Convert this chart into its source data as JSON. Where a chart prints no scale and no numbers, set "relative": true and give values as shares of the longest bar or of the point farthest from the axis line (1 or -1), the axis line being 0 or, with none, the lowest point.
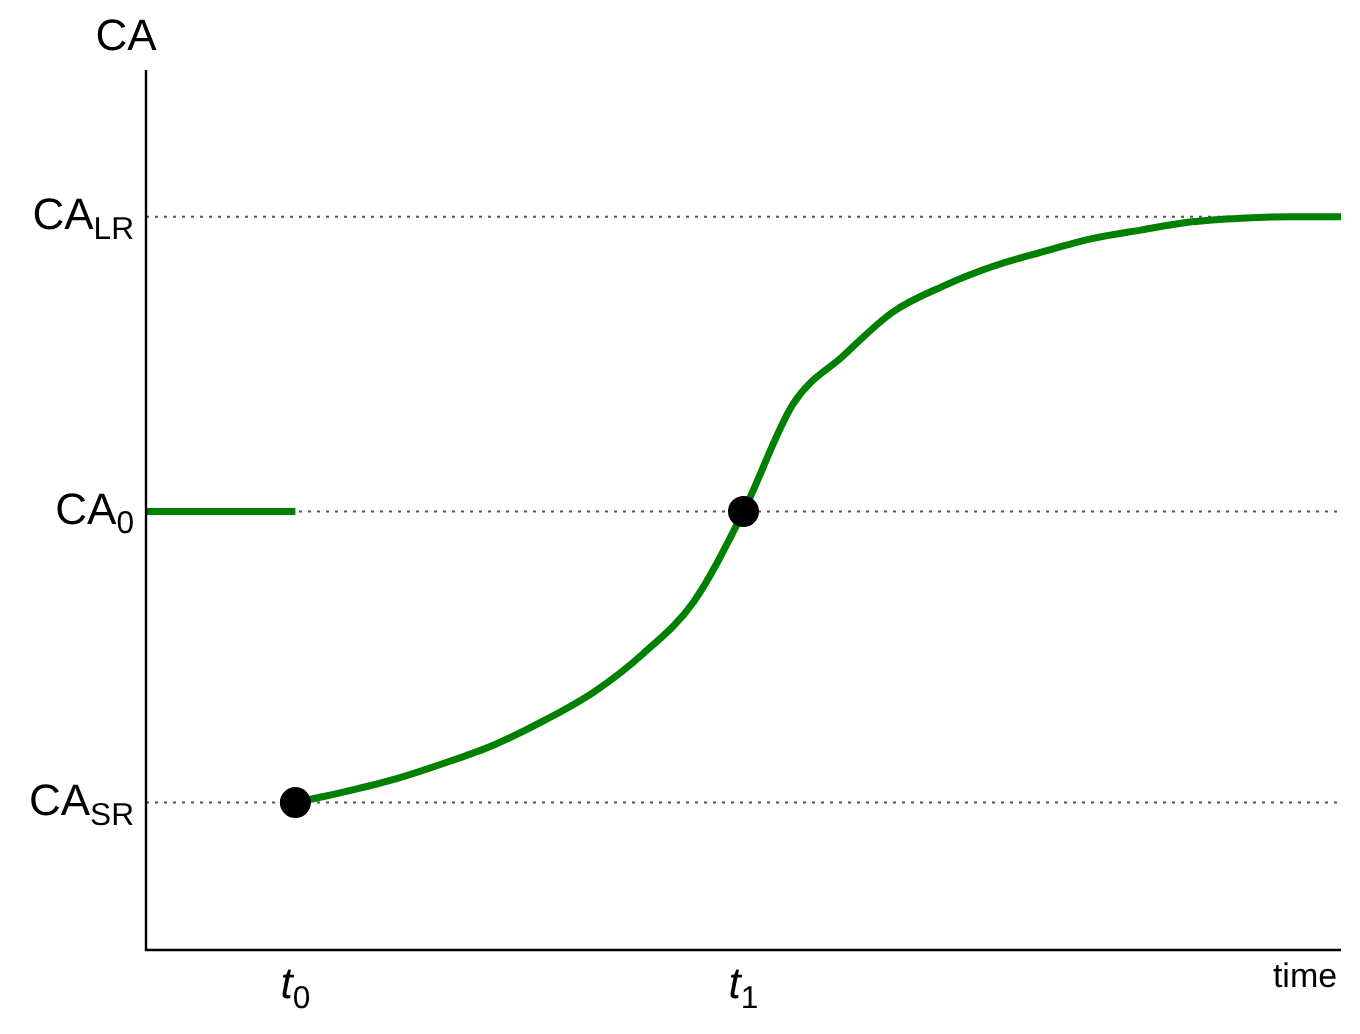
{
  "chart_data": {
    "type": "line",
    "relative": true,
    "ylabel": "CA",
    "xlabel": "time",
    "categories": [
      null,
      null,
      null,
      "t$_{0}$",
      null,
      null,
      null,
      null,
      null,
      null,
      null,
      null,
      "t$_{1}$",
      null,
      null,
      null,
      null,
      null,
      null,
      null,
      null,
      null,
      null,
      null,
      null
    ],
    "ref_lines": [
      {
        "axis": "y",
        "value": 1.0,
        "label": "CA$_{LR}$",
        "color": "#555555",
        "line_style": "dotted"
      },
      {
        "axis": "y",
        "value": 0.598,
        "label": "CA$_{0}$",
        "color": "#555555",
        "line_style": "dotted"
      },
      {
        "axis": "y",
        "value": 0.201,
        "label": "CA$_{SR}$",
        "color": "#555555",
        "line_style": "dotted"
      }
    ],
    "legend": false,
    "grid": false,
    "series": [
      {
        "color": "#008000",
        "marker": "none",
        "values": [
          0.598,
          0.598,
          0.598,
          0.598,
          null,
          null,
          null,
          null,
          null,
          null,
          null,
          null,
          null,
          null,
          null,
          null,
          null,
          null,
          null,
          null,
          null,
          null,
          null,
          null,
          null
        ]
      },
      {
        "color": "#008000",
        "marker": "none",
        "values": [
          null,
          null,
          null,
          0.201,
          0.216,
          0.233,
          0.255,
          0.28,
          0.313,
          0.352,
          0.405,
          0.475,
          0.598,
          0.745,
          0.81,
          0.87,
          0.905,
          0.932,
          0.952,
          0.97,
          0.982,
          0.993,
          0.998,
          1.0,
          1.0
        ]
      },
      {
        "type": "scatter",
        "color": "#000000",
        "marker": "circle",
        "x": [
          "t$_{0}$",
          "t$_{1}$"
        ],
        "values": [
          0.201,
          0.598
        ]
      }
    ]
  }
}
